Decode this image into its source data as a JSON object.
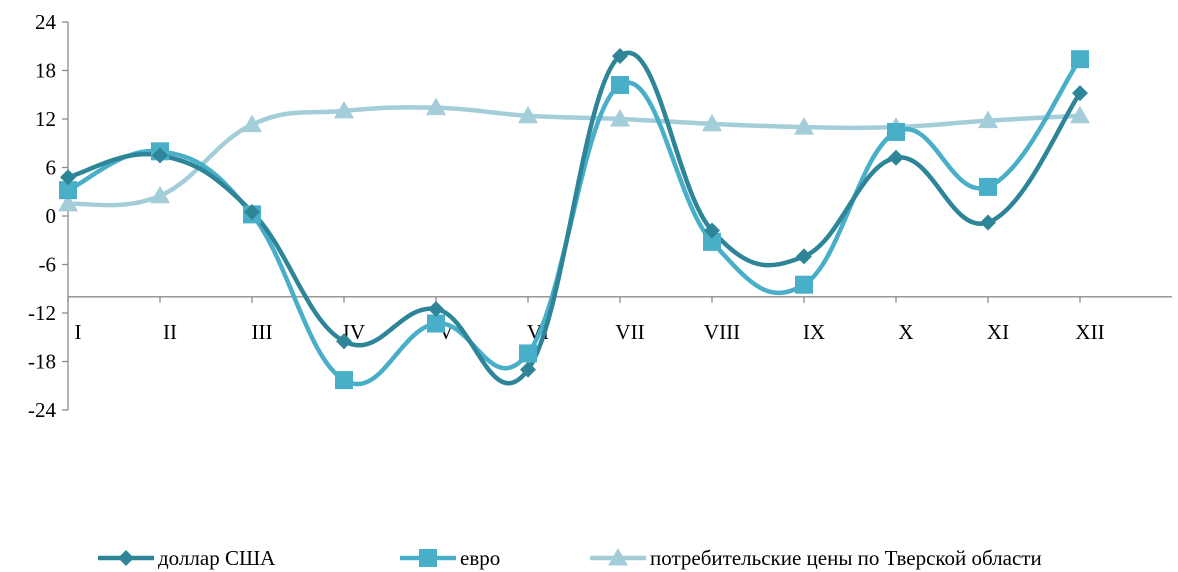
{
  "chart_data": {
    "type": "line",
    "smooth": true,
    "title": "",
    "xlabel": "",
    "ylabel": "",
    "categories": [
      "I",
      "II",
      "III",
      "IV",
      "V",
      "VI",
      "VII",
      "VIII",
      "IX",
      "X",
      "XI",
      "XII"
    ],
    "y_ticks": [
      24,
      18,
      12,
      6,
      0,
      -6,
      -12,
      -18,
      -24
    ],
    "ylim": [
      -24,
      24
    ],
    "category_axis_at": -10,
    "grid": false,
    "legend_position": "bottom",
    "series": [
      {
        "name": "доллар США",
        "color": "#2e8598",
        "marker": "diamond",
        "values": [
          4.8,
          7.5,
          0.5,
          -15.5,
          -11.5,
          -19.0,
          19.8,
          -1.8,
          -5.0,
          7.2,
          -0.8,
          15.2
        ]
      },
      {
        "name": "евро",
        "color": "#49afc9",
        "marker": "square",
        "values": [
          3.2,
          8.0,
          0.2,
          -20.3,
          -13.3,
          -17.0,
          16.2,
          -3.2,
          -8.5,
          10.4,
          3.6,
          19.4
        ]
      },
      {
        "name": "потребительские цены по Тверской области",
        "color": "#a3cdd9",
        "marker": "triangle",
        "values": [
          1.5,
          2.5,
          11.3,
          13.0,
          13.4,
          12.4,
          12.0,
          11.4,
          11.0,
          11.0,
          11.8,
          12.4
        ]
      }
    ]
  }
}
